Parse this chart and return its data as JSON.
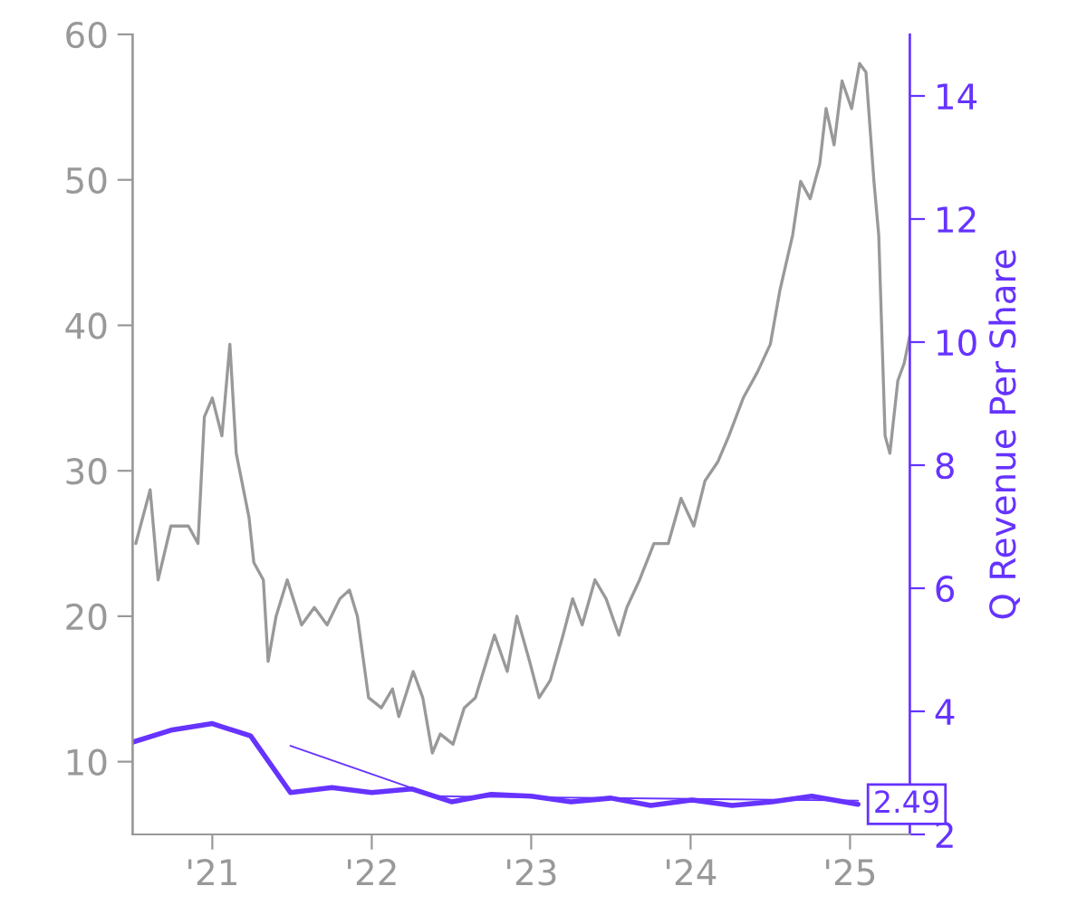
{
  "chart_data": {
    "type": "line",
    "y2label": "Q Revenue Per Share",
    "xlim": [
      2020.5,
      2025.375
    ],
    "xticks": [
      {
        "value": 2021,
        "label": "'21"
      },
      {
        "value": 2022,
        "label": "'22"
      },
      {
        "value": 2023,
        "label": "'23"
      },
      {
        "value": 2024,
        "label": "'24"
      },
      {
        "value": 2025,
        "label": "'25"
      }
    ],
    "ylim": [
      5,
      60
    ],
    "yticks": [
      10,
      20,
      30,
      40,
      50,
      60
    ],
    "y2lim": [
      2,
      15
    ],
    "y2ticks": [
      2,
      4,
      6,
      8,
      10,
      12,
      14
    ],
    "series": [
      {
        "color": "#999999",
        "x": [
          2020.52,
          2020.61,
          2020.66,
          2020.74,
          2020.85,
          2020.91,
          2020.95,
          2021.0,
          2021.06,
          2021.11,
          2021.15,
          2021.23,
          2021.26,
          2021.32,
          2021.35,
          2021.4,
          2021.47,
          2021.56,
          2021.64,
          2021.72,
          2021.8,
          2021.86,
          2021.91,
          2021.98,
          2022.06,
          2022.13,
          2022.17,
          2022.26,
          2022.32,
          2022.38,
          2022.43,
          2022.51,
          2022.58,
          2022.65,
          2022.72,
          2022.77,
          2022.85,
          2022.91,
          2022.99,
          2023.05,
          2023.12,
          2023.2,
          2023.26,
          2023.32,
          2023.4,
          2023.47,
          2023.55,
          2023.6,
          2023.68,
          2023.77,
          2023.86,
          2023.94,
          2024.02,
          2024.09,
          2024.17,
          2024.24,
          2024.33,
          2024.42,
          2024.5,
          2024.56,
          2024.64,
          2024.69,
          2024.75,
          2024.81,
          2024.85,
          2024.9,
          2024.95,
          2025.01,
          2025.06,
          2025.1,
          2025.15,
          2025.18,
          2025.22,
          2025.25,
          2025.3,
          2025.34,
          2025.375
        ],
        "values": [
          25,
          28.7,
          22.5,
          26.2,
          26.2,
          25,
          33.7,
          35,
          32.4,
          38.7,
          31.2,
          26.8,
          23.7,
          22.5,
          16.9,
          20,
          22.5,
          19.4,
          20.6,
          19.4,
          21.2,
          21.8,
          20,
          14.4,
          13.7,
          15,
          13.1,
          16.2,
          14.4,
          10.6,
          11.9,
          11.2,
          13.7,
          14.4,
          16.9,
          18.7,
          16.2,
          20,
          16.9,
          14.4,
          15.6,
          18.7,
          21.2,
          19.4,
          22.5,
          21.2,
          18.7,
          20.6,
          22.5,
          25,
          25,
          28.1,
          26.2,
          29.3,
          30.6,
          32.4,
          35,
          36.8,
          38.7,
          42.4,
          46.2,
          49.9,
          48.7,
          51.1,
          54.9,
          52.4,
          56.8,
          54.9,
          58,
          57.4,
          49.9,
          46.2,
          32.4,
          31.2,
          36.2,
          37.4,
          39.3
        ]
      },
      {
        "color": "#6633ff",
        "axis": "y2",
        "x": [
          2020.5,
          2020.75,
          2021.0,
          2021.24,
          2021.49,
          2021.75,
          2022.0,
          2022.25,
          2022.5,
          2022.75,
          2023.0,
          2023.25,
          2023.5,
          2023.75,
          2024.01,
          2024.26,
          2024.51,
          2024.76,
          2025.05
        ],
        "values": [
          3.5,
          3.7,
          3.8,
          3.6,
          2.68,
          2.76,
          2.68,
          2.74,
          2.53,
          2.65,
          2.62,
          2.53,
          2.59,
          2.47,
          2.56,
          2.47,
          2.53,
          2.62,
          2.49
        ],
        "value_labels": [
          null,
          null,
          null,
          null,
          null,
          null,
          null,
          null,
          null,
          null,
          null,
          null,
          null,
          null,
          null,
          null,
          null,
          null,
          "2.49"
        ]
      },
      {
        "color": "#6633ff",
        "axis": "y2",
        "x": [
          2021.49,
          2022.4,
          2025.05
        ],
        "values": [
          3.44,
          2.62,
          2.55
        ]
      }
    ]
  }
}
